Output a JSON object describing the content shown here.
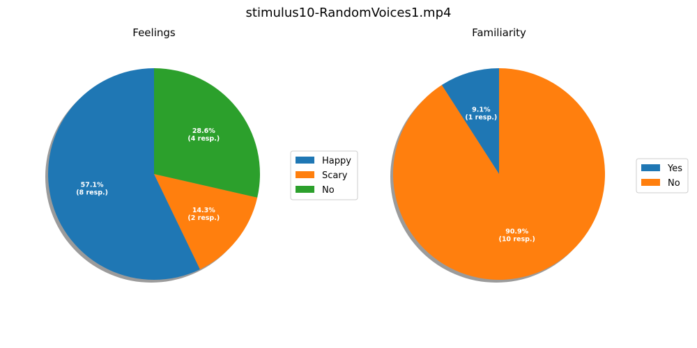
{
  "figure": {
    "title": "stimulus10-RandomVoices1.mp4"
  },
  "chart_data": [
    {
      "type": "pie",
      "title": "Feelings",
      "slices": [
        {
          "name": "Happy",
          "value": 8,
          "percent": "57.1%",
          "resp": "(8 resp.)",
          "color": "#1f77b4"
        },
        {
          "name": "Scary",
          "value": 2,
          "percent": "14.3%",
          "resp": "(2 resp.)",
          "color": "#ff7f0e"
        },
        {
          "name": "No",
          "value": 4,
          "percent": "28.6%",
          "resp": "(4 resp.)",
          "color": "#2ca02c"
        }
      ],
      "legend": "right",
      "shadow": true
    },
    {
      "type": "pie",
      "title": "Familiarity",
      "slices": [
        {
          "name": "Yes",
          "value": 1,
          "percent": "9.1%",
          "resp": "(1 resp.)",
          "color": "#1f77b4"
        },
        {
          "name": "No",
          "value": 10,
          "percent": "90.9%",
          "resp": "(10 resp.)",
          "color": "#ff7f0e"
        }
      ],
      "legend": "right",
      "shadow": true
    }
  ]
}
